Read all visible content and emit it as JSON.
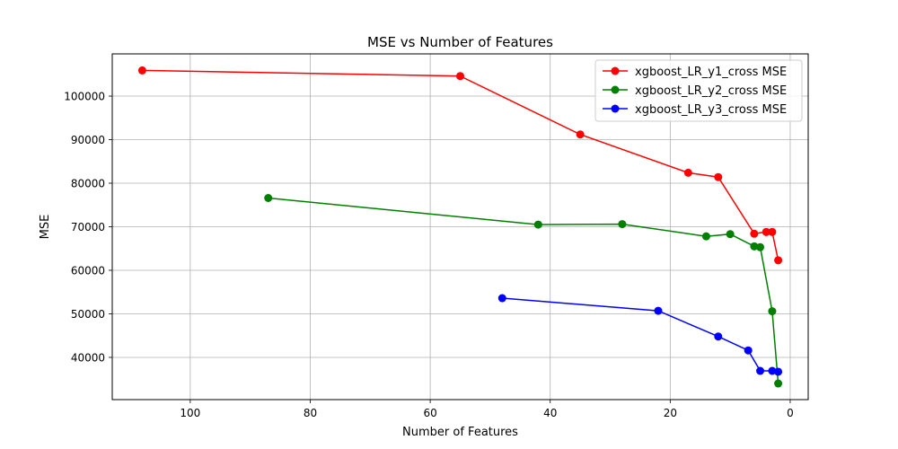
{
  "chart_data": {
    "type": "line",
    "title": "MSE vs Number of Features",
    "xlabel": "Number of Features",
    "ylabel": "MSE",
    "x_reversed": true,
    "xlim": [
      113,
      -3
    ],
    "ylim": [
      30300,
      109700
    ],
    "xticks": [
      100,
      80,
      60,
      40,
      20,
      0
    ],
    "yticks": [
      40000,
      50000,
      60000,
      70000,
      80000,
      90000,
      100000
    ],
    "grid": true,
    "legend_position": "top-right",
    "series": [
      {
        "name": "xgboost_LR_y1_cross MSE",
        "color": "#ff0000",
        "points": [
          [
            108,
            105900
          ],
          [
            55,
            104600
          ],
          [
            35,
            91200
          ],
          [
            17,
            82400
          ],
          [
            12,
            81400
          ],
          [
            6,
            68400
          ],
          [
            4,
            68800
          ],
          [
            3,
            68800
          ],
          [
            2,
            62300
          ]
        ]
      },
      {
        "name": "xgboost_LR_y2_cross MSE",
        "color": "#008000",
        "points": [
          [
            87,
            76600
          ],
          [
            42,
            70500
          ],
          [
            28,
            70600
          ],
          [
            14,
            67800
          ],
          [
            10,
            68300
          ],
          [
            6,
            65500
          ],
          [
            5,
            65300
          ],
          [
            3,
            50600
          ],
          [
            2,
            34000
          ]
        ]
      },
      {
        "name": "xgboost_LR_y3_cross MSE",
        "color": "#0000ff",
        "points": [
          [
            48,
            53600
          ],
          [
            22,
            50700
          ],
          [
            12,
            44800
          ],
          [
            7,
            41600
          ],
          [
            5,
            36900
          ],
          [
            3,
            36900
          ],
          [
            2,
            36700
          ]
        ]
      }
    ]
  }
}
